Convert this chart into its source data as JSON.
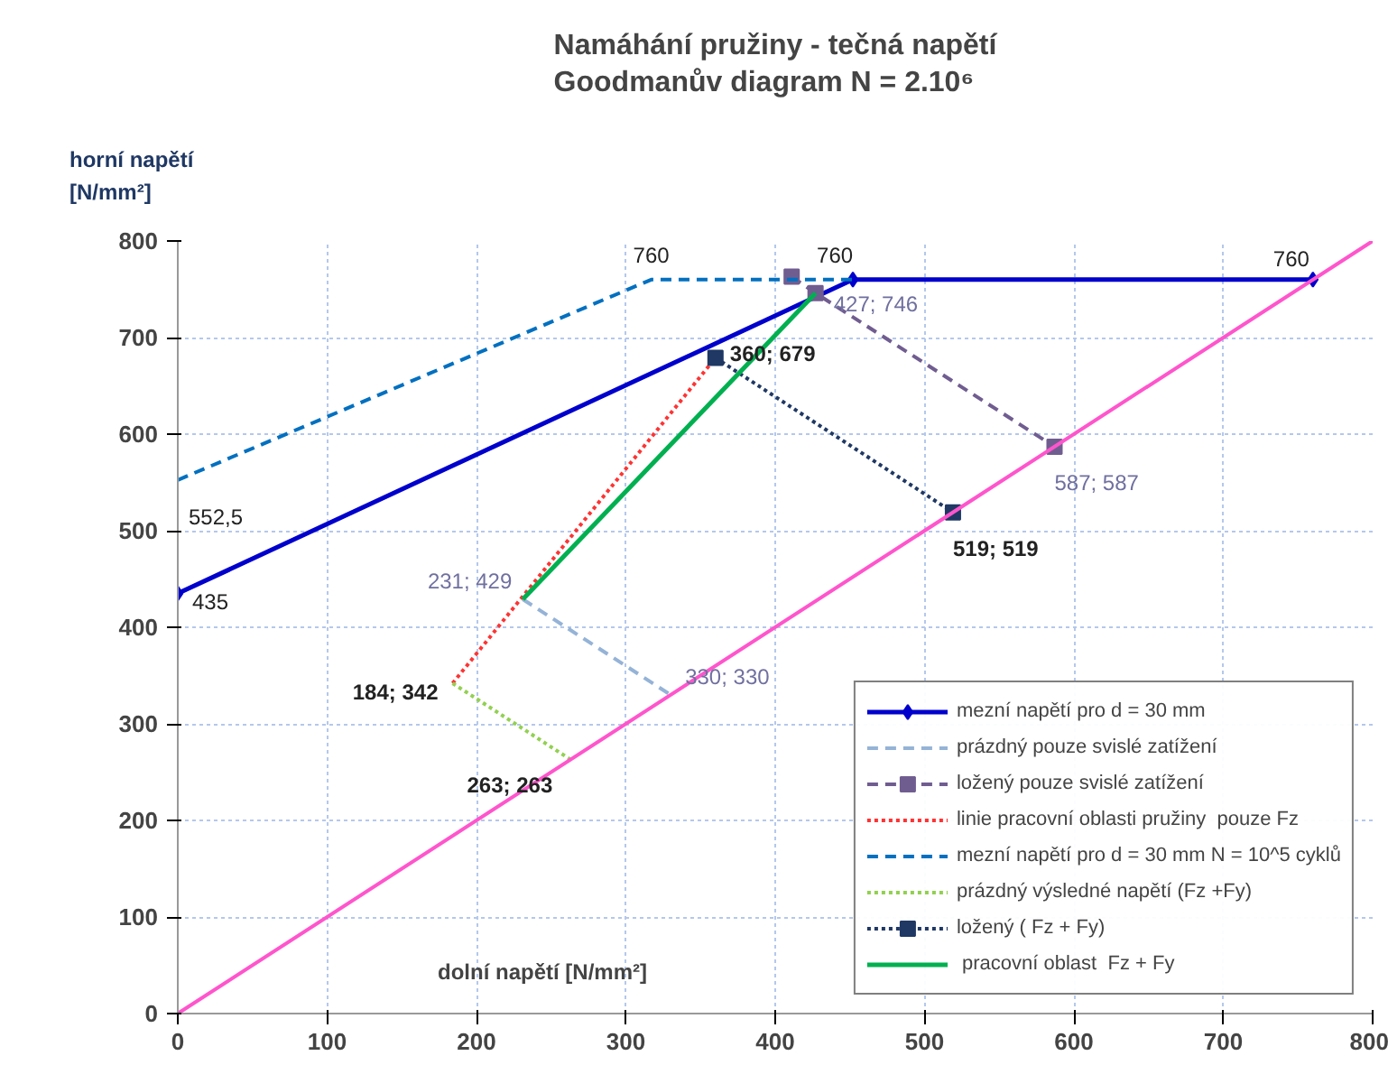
{
  "chart_data": {
    "type": "line",
    "title": "Namáhání pružiny - tečná napětí\nGoodmanův diagram  N = 2.10⁶",
    "xlabel": "dolní napětí [N/mm²]",
    "ylabel": "horní napětí\n[N/mm²]",
    "xlim": [
      0,
      800
    ],
    "ylim": [
      0,
      800
    ],
    "xticks": [
      0,
      100,
      200,
      300,
      400,
      500,
      600,
      700,
      800
    ],
    "yticks": [
      0,
      100,
      200,
      300,
      400,
      500,
      600,
      700,
      800
    ],
    "grid": true,
    "legend": "bottom right",
    "series": [
      {
        "name": "mezní napětí pro d = 30 mm",
        "color": "#0000cc",
        "x": [
          0,
          452,
          760
        ],
        "values": [
          435,
          760,
          760
        ],
        "marker": "diamond",
        "line_style": "solid",
        "value_labels": [
          "435",
          "760",
          "760"
        ]
      },
      {
        "name": "prázdný pouze svislé zatížení",
        "color": "#95b3d7",
        "x": [
          231,
          330
        ],
        "values": [
          429,
          330
        ],
        "marker": "none",
        "line_style": "dashed",
        "value_labels": [
          "231; 429",
          "330; 330"
        ]
      },
      {
        "name": "ložený pouze svislé zatížení",
        "color": "#705d90",
        "x": [
          411,
          427,
          587
        ],
        "values": [
          763,
          746,
          587
        ],
        "marker": "square",
        "line_style": "dashed",
        "value_labels": [
          null,
          "427; 746",
          "587; 587"
        ]
      },
      {
        "name": "linie pracovní oblasti pružiny  pouze Fz",
        "color": "#ff3333",
        "x": [
          184,
          360
        ],
        "values": [
          342,
          679
        ],
        "marker": "none",
        "line_style": "dotted",
        "value_labels": [
          "184; 342",
          "360; 679"
        ]
      },
      {
        "name": "mezní napětí pro d = 30 mm N = 10^5 cyklů",
        "color": "#0070c0",
        "x": [
          0,
          317,
          452
        ],
        "values": [
          552.5,
          760,
          760
        ],
        "marker": "none",
        "line_style": "dashed",
        "value_labels": [
          "552,5",
          "760",
          null
        ]
      },
      {
        "name": "prázdný výsledné napětí (Fz +Fy)",
        "color": "#92d050",
        "x": [
          184,
          263
        ],
        "values": [
          342,
          263
        ],
        "marker": "none",
        "line_style": "dotted",
        "value_labels": [
          null,
          "263; 263"
        ]
      },
      {
        "name": "ložený ( Fz + Fy)",
        "color": "#1f3864",
        "x": [
          360,
          519
        ],
        "values": [
          679,
          519
        ],
        "marker": "square",
        "line_style": "dotted",
        "value_labels": [
          null,
          "519; 519"
        ]
      },
      {
        "name": " pracovní oblast  Fz + Fy",
        "color": "#00b050",
        "x": [
          231,
          427
        ],
        "values": [
          429,
          746
        ],
        "marker": "none",
        "line_style": "solid"
      },
      {
        "color": "#ff55cc",
        "x": [
          0,
          800
        ],
        "values": [
          0,
          800
        ],
        "marker": "none",
        "line_style": "solid"
      }
    ]
  }
}
